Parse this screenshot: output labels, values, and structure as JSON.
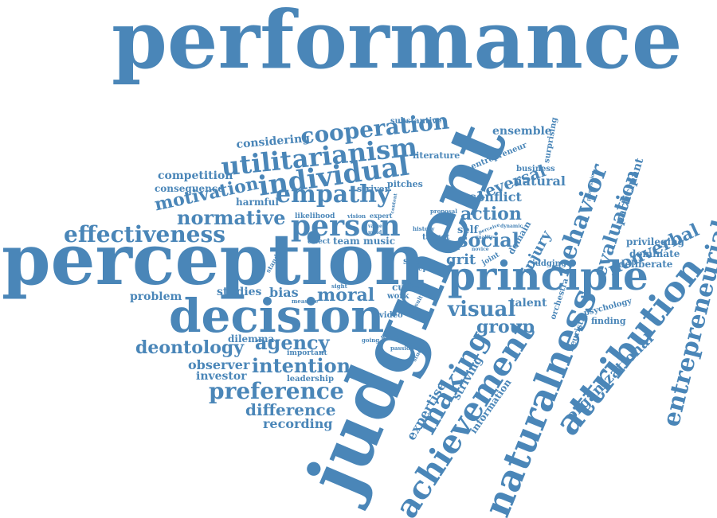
{
  "color": "#4a86b8",
  "words": [
    "performance",
    "judgment",
    "perception",
    "principle",
    "decision",
    "attribution",
    "naturalness",
    "achievement",
    "entrepreneurial",
    "making",
    "individual",
    "cooperation",
    "utilitarianism",
    "empathy",
    "person",
    "effectiveness",
    "normative",
    "motivation",
    "competition",
    "consequence",
    "considering",
    "harmful",
    "action",
    "social",
    "reversal",
    "conflict",
    "natural",
    "entrepreneur",
    "ensemble",
    "literature",
    "substantive",
    "surprising",
    "business",
    "behavior",
    "evaluation",
    "participant",
    "nonverbal",
    "privileging",
    "dominate",
    "deliberate",
    "organizational",
    "psychology",
    "finding",
    "heuristic",
    "orchestra",
    "group",
    "talent",
    "visual",
    "moral",
    "bias",
    "studies",
    "problem",
    "agency",
    "deontology",
    "dilemma",
    "important",
    "observer",
    "intention",
    "investor",
    "leadership",
    "preference",
    "difference",
    "recording",
    "expertise",
    "striving",
    "information",
    "injury",
    "domain",
    "self",
    "grit",
    "snap",
    "report",
    "cue",
    "work",
    "video",
    "passion",
    "wrong",
    "study",
    "going",
    "sight",
    "measure",
    "standard",
    "effect",
    "team",
    "music",
    "likelihood",
    "vision",
    "expert",
    "target",
    "history",
    "proposal",
    "pitches",
    "striver",
    "judging",
    "joint",
    "novice",
    "pitch",
    "perceive",
    "dynamic",
    "proposition",
    "quality",
    "result",
    "more",
    "value",
    "mind",
    "content",
    "rule",
    "trust",
    "reject"
  ]
}
